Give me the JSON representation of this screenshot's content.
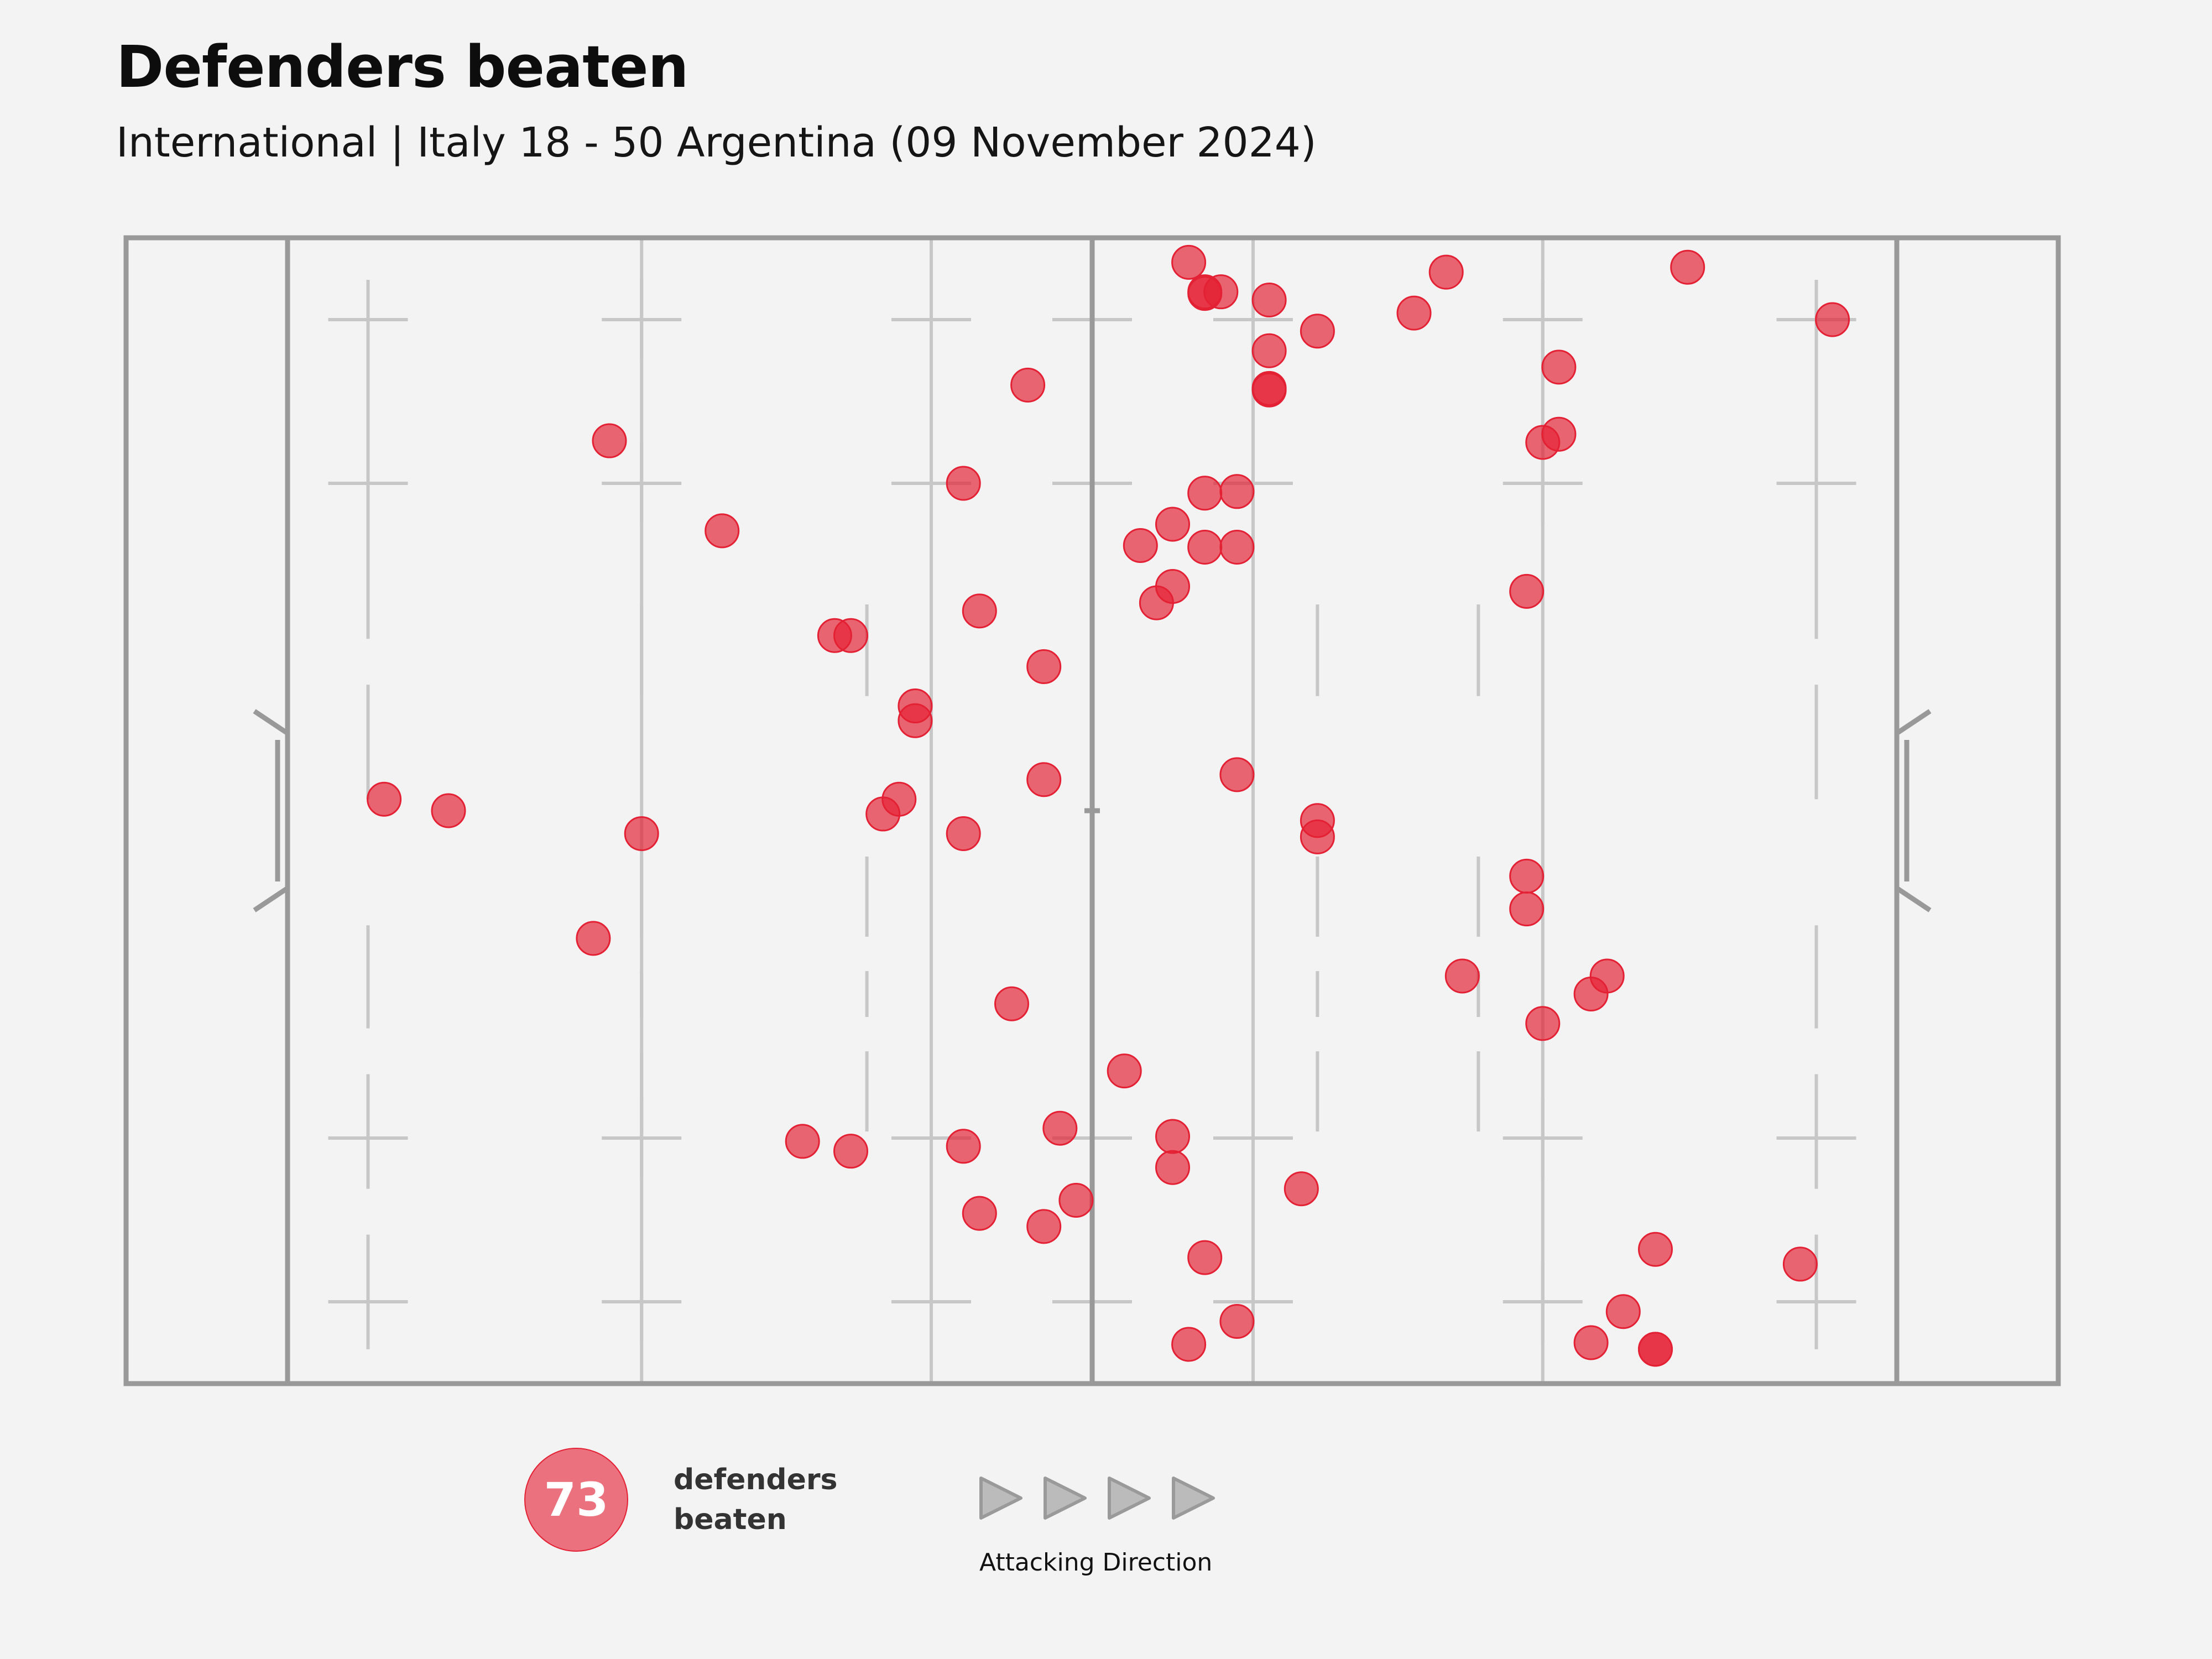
{
  "title": "Defenders beaten",
  "subtitle": "International | Italy 18 - 50 Argentina (09 November 2024)",
  "legend": {
    "count": "73",
    "label_line1": "defenders",
    "label_line2": "beaten",
    "direction_label": "Attacking Direction",
    "arrow_icon": "play-triangle-icon"
  },
  "colors": {
    "event": "#e42134",
    "pitch_lines": "#999999",
    "markings": "#c7c7c7",
    "background": "#f3f3f3"
  },
  "chart_data": {
    "type": "scatter",
    "title": "Defenders beaten",
    "subtitle": "International | Italy 18 - 50 Argentina (09 November 2024)",
    "x_range": [
      0,
      100
    ],
    "y_range": [
      0,
      70
    ],
    "x_meaning": "metres from own try line (attacking left to right)",
    "y_meaning": "metres across the pitch",
    "grid": false,
    "points": [
      [
        56.0,
        1.5
      ],
      [
        57.0,
        3.3
      ],
      [
        58.0,
        3.3
      ],
      [
        61.0,
        3.8
      ],
      [
        64.0,
        5.7
      ],
      [
        61.0,
        6.9
      ],
      [
        61.0,
        9.3
      ],
      [
        46.0,
        9.0
      ],
      [
        70.0,
        4.6
      ],
      [
        72.0,
        2.1
      ],
      [
        87.0,
        1.8
      ],
      [
        96.0,
        5.0
      ],
      [
        79.0,
        7.9
      ],
      [
        79.0,
        12.0
      ],
      [
        78.0,
        12.5
      ],
      [
        20.0,
        12.4
      ],
      [
        42.0,
        15.0
      ],
      [
        27.0,
        17.9
      ],
      [
        57.0,
        15.6
      ],
      [
        59.0,
        15.5
      ],
      [
        55.0,
        17.5
      ],
      [
        53.0,
        18.8
      ],
      [
        57.0,
        18.9
      ],
      [
        59.0,
        18.9
      ],
      [
        55.0,
        21.3
      ],
      [
        54.0,
        22.3
      ],
      [
        43.0,
        22.8
      ],
      [
        77.0,
        21.6
      ],
      [
        35.0,
        24.3
      ],
      [
        47.0,
        26.2
      ],
      [
        39.0,
        28.6
      ],
      [
        39.0,
        29.5
      ],
      [
        6.0,
        34.3
      ],
      [
        10.0,
        35.0
      ],
      [
        22.0,
        36.4
      ],
      [
        38.0,
        34.3
      ],
      [
        37.0,
        35.2
      ],
      [
        42.0,
        36.4
      ],
      [
        47.0,
        33.1
      ],
      [
        59.0,
        32.8
      ],
      [
        64.0,
        35.6
      ],
      [
        64.0,
        36.6
      ],
      [
        77.0,
        39.0
      ],
      [
        77.0,
        41.0
      ],
      [
        19.0,
        42.8
      ],
      [
        45.0,
        46.8
      ],
      [
        73.0,
        45.1
      ],
      [
        82.0,
        45.1
      ],
      [
        81.0,
        46.2
      ],
      [
        78.0,
        48.0
      ],
      [
        52.0,
        50.9
      ],
      [
        32.0,
        55.2
      ],
      [
        35.0,
        55.8
      ],
      [
        42.0,
        55.5
      ],
      [
        48.0,
        54.4
      ],
      [
        55.0,
        54.9
      ],
      [
        55.0,
        56.8
      ],
      [
        63.0,
        58.1
      ],
      [
        43.0,
        59.6
      ],
      [
        47.0,
        60.4
      ],
      [
        49.0,
        58.8
      ],
      [
        57.0,
        62.3
      ],
      [
        85.0,
        61.8
      ],
      [
        94.0,
        62.7
      ],
      [
        59.0,
        66.2
      ],
      [
        56.0,
        67.6
      ],
      [
        81.0,
        67.5
      ],
      [
        83.0,
        65.6
      ],
      [
        85.0,
        67.9
      ],
      [
        34.0,
        24.3
      ],
      [
        61.0,
        9.2
      ],
      [
        57.0,
        3.4
      ],
      [
        85.0,
        67.9
      ]
    ]
  }
}
